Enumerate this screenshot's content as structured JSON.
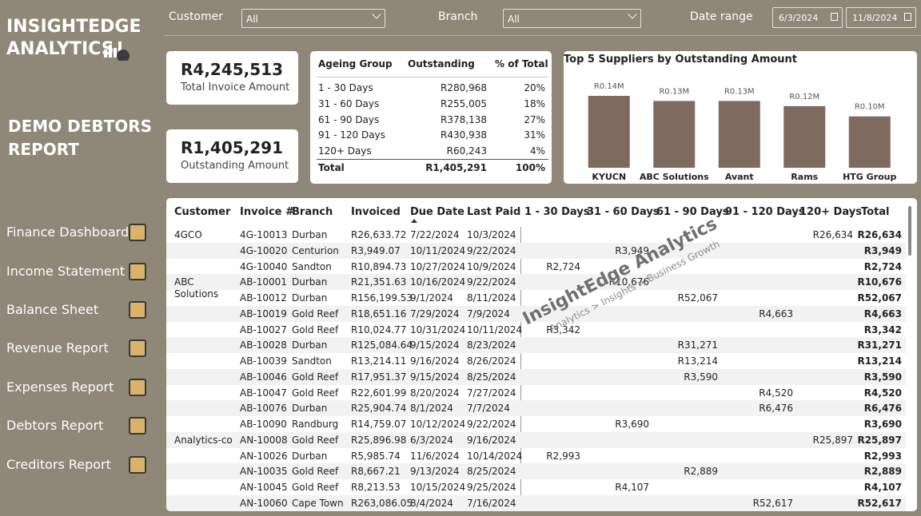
{
  "logo": {
    "line1": "INSIGHTEDGE",
    "line2": "ANALYTICS"
  },
  "report_title": "DEMO DEBTORS REPORT",
  "nav": [
    "Finance Dashboard",
    "Income Statement",
    "Balance Sheet",
    "Revenue Report",
    "Expenses Report",
    "Debtors Report",
    "Creditors Report"
  ],
  "filters": [
    {
      "label": "Customer",
      "value": "All"
    },
    {
      "label": "Branch",
      "value": "All"
    }
  ],
  "date_range": {
    "label": "Date range",
    "start": "6/3/2024",
    "end": "11/8/2024"
  },
  "kpis": [
    {
      "value": "R4,245,513",
      "label": "Total Invoice Amount"
    },
    {
      "value": "R1,405,291",
      "label": "Outstanding Amount"
    }
  ],
  "ageing_table": {
    "headers": [
      "Ageing Group",
      "Outstanding",
      "% of Total"
    ],
    "rows": [
      [
        "1 - 30 Days",
        "R280,968",
        "20%"
      ],
      [
        "31 - 60 Days",
        "R255,005",
        "18%"
      ],
      [
        "61 - 90 Days",
        "R378,138",
        "27%"
      ],
      [
        "91 - 120 Days",
        "R430,938",
        "31%"
      ],
      [
        "120+ Days",
        "R60,243",
        "4%"
      ]
    ],
    "total": [
      "Total",
      "R1,405,291",
      "100%"
    ]
  },
  "chart_data": {
    "type": "bar",
    "title": "Top 5 Suppliers by Outstanding Amount",
    "categories": [
      "KYUCN",
      "ABC Solutions",
      "Avant",
      "Rams",
      "HTG Group"
    ],
    "values": [
      0.14,
      0.13,
      0.13,
      0.12,
      0.1
    ],
    "value_labels": [
      "R0.14M",
      "R0.13M",
      "R0.13M",
      "R0.12M",
      "R0.10M"
    ],
    "color": "#7e6a5f"
  },
  "table": {
    "headers": [
      "Customer",
      "Invoice #",
      "Branch",
      "Invoiced",
      "Due Date",
      "Last Paid",
      "1 - 30 Days",
      "31 - 60 Days",
      "61 - 90 Days",
      "91 - 120 Days",
      "120+ Days",
      "Total"
    ],
    "rows": [
      [
        "4GCO",
        "4G-10013",
        "Durban",
        "R26,633.72",
        "7/22/2024",
        "10/3/2024",
        null,
        null,
        null,
        null,
        "R26,634",
        "R26,634"
      ],
      [
        null,
        "4G-10020",
        "Centurion",
        "R3,949.07",
        "10/11/2024",
        "9/22/2024",
        null,
        "R3,949",
        null,
        null,
        null,
        "R3,949"
      ],
      [
        null,
        "4G-10040",
        "Sandton",
        "R10,894.73",
        "10/27/2024",
        "10/9/2024",
        "R2,724",
        null,
        null,
        null,
        null,
        "R2,724"
      ],
      [
        "ABC Solutions",
        "AB-10001",
        "Durban",
        "R21,351.63",
        "10/16/2024",
        "9/22/2024",
        null,
        "R10,676",
        null,
        null,
        null,
        "R10,676"
      ],
      [
        null,
        "AB-10012",
        "Durban",
        "R156,199.53",
        "9/1/2024",
        "8/11/2024",
        null,
        null,
        "R52,067",
        null,
        null,
        "R52,067"
      ],
      [
        null,
        "AB-10019",
        "Gold Reef",
        "R18,651.16",
        "7/29/2024",
        "7/9/2024",
        null,
        null,
        null,
        "R4,663",
        null,
        "R4,663"
      ],
      [
        null,
        "AB-10027",
        "Gold Reef",
        "R10,024.77",
        "10/31/2024",
        "10/11/2024",
        "R3,342",
        null,
        null,
        null,
        null,
        "R3,342"
      ],
      [
        null,
        "AB-10028",
        "Durban",
        "R125,084.64",
        "9/15/2024",
        "8/23/2024",
        null,
        null,
        "R31,271",
        null,
        null,
        "R31,271"
      ],
      [
        null,
        "AB-10039",
        "Sandton",
        "R13,214.11",
        "9/16/2024",
        "8/26/2024",
        null,
        null,
        "R13,214",
        null,
        null,
        "R13,214"
      ],
      [
        null,
        "AB-10046",
        "Gold Reef",
        "R17,951.37",
        "9/15/2024",
        "8/25/2024",
        null,
        null,
        "R3,590",
        null,
        null,
        "R3,590"
      ],
      [
        null,
        "AB-10047",
        "Gold Reef",
        "R22,601.99",
        "8/20/2024",
        "7/27/2024",
        null,
        null,
        null,
        "R4,520",
        null,
        "R4,520"
      ],
      [
        null,
        "AB-10076",
        "Durban",
        "R25,904.74",
        "8/1/2024",
        "7/7/2024",
        null,
        null,
        null,
        "R6,476",
        null,
        "R6,476"
      ],
      [
        null,
        "AB-10090",
        "Randburg",
        "R14,759.07",
        "10/12/2024",
        "9/22/2024",
        null,
        "R3,690",
        null,
        null,
        null,
        "R3,690"
      ],
      [
        "Analytics-co",
        "AN-10008",
        "Gold Reef",
        "R25,896.98",
        "6/3/2024",
        "9/16/2024",
        null,
        null,
        null,
        null,
        "R25,897",
        "R25,897"
      ],
      [
        null,
        "AN-10026",
        "Durban",
        "R5,985.74",
        "11/6/2024",
        "10/14/2024",
        "R2,993",
        null,
        null,
        null,
        null,
        "R2,993"
      ],
      [
        null,
        "AN-10035",
        "Gold Reef",
        "R8,667.21",
        "9/13/2024",
        "8/25/2024",
        null,
        null,
        "R2,889",
        null,
        null,
        "R2,889"
      ],
      [
        null,
        "AN-10045",
        "Gold Reef",
        "R8,213.53",
        "10/15/2024",
        "9/25/2024",
        null,
        "R4,107",
        null,
        null,
        null,
        "R4,107"
      ],
      [
        null,
        "AN-10060",
        "Cape Town",
        "R263,086.05",
        "8/4/2024",
        "7/16/2024",
        null,
        null,
        null,
        "R52,617",
        null,
        "R52,617"
      ]
    ]
  },
  "watermark": {
    "title": "InsightEdge Analytics",
    "tagline": "Analytics > Insights > Business Growth"
  }
}
